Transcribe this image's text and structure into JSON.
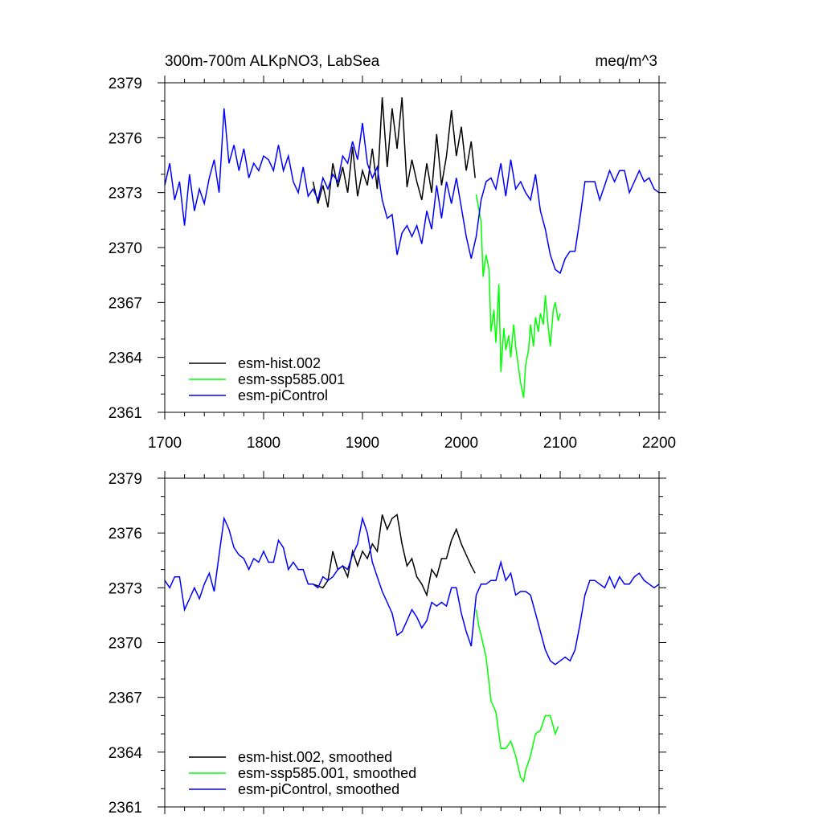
{
  "chart_data": [
    {
      "type": "line",
      "title": "300m-700m ALKpNO3, LabSea",
      "units": "meq/m^3",
      "xlim": [
        1700,
        2200
      ],
      "ylim": [
        2361,
        2379
      ],
      "xticks": [
        "1700",
        "1800",
        "1900",
        "2000",
        "2100",
        "2200"
      ],
      "yticks": [
        "2361",
        "2364",
        "2367",
        "2370",
        "2373",
        "2376",
        "2379"
      ],
      "legend_position": "bottom-left",
      "series": [
        {
          "name": "esm-hist.002",
          "color": "#000000",
          "x": [
            1850,
            1855,
            1860,
            1865,
            1870,
            1875,
            1880,
            1885,
            1890,
            1895,
            1900,
            1905,
            1910,
            1915,
            1920,
            1925,
            1930,
            1935,
            1940,
            1945,
            1950,
            1955,
            1960,
            1965,
            1970,
            1975,
            1980,
            1985,
            1990,
            1995,
            2000,
            2005,
            2010,
            2014
          ],
          "values": [
            2373.6,
            2372.4,
            2373.4,
            2372.2,
            2374.6,
            2373.3,
            2374.4,
            2373.0,
            2375.5,
            2372.8,
            2374.2,
            2373.4,
            2375.4,
            2373.2,
            2378.2,
            2374.4,
            2377.6,
            2375.4,
            2378.2,
            2373.3,
            2374.8,
            2373.6,
            2372.6,
            2374.6,
            2373.0,
            2376.2,
            2373.4,
            2375.0,
            2377.5,
            2375.0,
            2376.6,
            2374.2,
            2375.8,
            2373.8
          ]
        },
        {
          "name": "esm-ssp585.001",
          "color": "#00ff00",
          "x": [
            2015,
            2020,
            2022,
            2025,
            2028,
            2030,
            2033,
            2035,
            2038,
            2040,
            2043,
            2045,
            2048,
            2050,
            2053,
            2055,
            2058,
            2060,
            2063,
            2065,
            2068,
            2070,
            2073,
            2075,
            2078,
            2080,
            2083,
            2085,
            2088,
            2090,
            2093,
            2095,
            2098,
            2100
          ],
          "values": [
            2372.9,
            2371.4,
            2368.4,
            2369.6,
            2368.8,
            2365.4,
            2366.6,
            2364.8,
            2368.0,
            2363.2,
            2365.6,
            2364.4,
            2365.2,
            2364.0,
            2365.8,
            2364.6,
            2363.4,
            2362.6,
            2361.8,
            2363.6,
            2364.4,
            2365.8,
            2364.6,
            2366.2,
            2365.4,
            2366.4,
            2365.8,
            2367.4,
            2365.6,
            2364.6,
            2366.6,
            2367.0,
            2366.0,
            2366.4
          ]
        },
        {
          "name": "esm-piControl",
          "color": "#0000ff",
          "x": [
            1700,
            1705,
            1710,
            1715,
            1720,
            1725,
            1730,
            1735,
            1740,
            1745,
            1750,
            1755,
            1760,
            1765,
            1770,
            1775,
            1780,
            1785,
            1790,
            1795,
            1800,
            1805,
            1810,
            1815,
            1820,
            1825,
            1830,
            1835,
            1840,
            1845,
            1850,
            1855,
            1860,
            1865,
            1870,
            1875,
            1880,
            1885,
            1890,
            1895,
            1900,
            1905,
            1910,
            1915,
            1920,
            1925,
            1930,
            1935,
            1940,
            1945,
            1950,
            1955,
            1960,
            1965,
            1970,
            1975,
            1980,
            1985,
            1990,
            1995,
            2000,
            2005,
            2010,
            2015,
            2020,
            2025,
            2030,
            2035,
            2040,
            2045,
            2050,
            2055,
            2060,
            2065,
            2070,
            2075,
            2080,
            2085,
            2090,
            2095,
            2100,
            2105,
            2110,
            2115,
            2120,
            2125,
            2130,
            2135,
            2140,
            2145,
            2150,
            2155,
            2160,
            2165,
            2170,
            2175,
            2180,
            2185,
            2190,
            2195,
            2200
          ],
          "values": [
            2373.4,
            2374.6,
            2372.6,
            2373.6,
            2371.2,
            2374.0,
            2372.0,
            2373.2,
            2372.4,
            2373.8,
            2374.8,
            2373.0,
            2377.6,
            2374.6,
            2375.6,
            2374.2,
            2375.4,
            2373.8,
            2374.6,
            2374.2,
            2375.0,
            2374.8,
            2374.2,
            2375.6,
            2374.2,
            2375.0,
            2373.6,
            2373.0,
            2374.4,
            2372.8,
            2373.2,
            2372.6,
            2373.8,
            2373.2,
            2374.0,
            2373.6,
            2375.0,
            2374.6,
            2375.8,
            2374.8,
            2376.8,
            2374.6,
            2373.8,
            2374.4,
            2372.6,
            2371.6,
            2371.8,
            2369.6,
            2370.8,
            2371.2,
            2370.6,
            2371.2,
            2370.2,
            2372.0,
            2371.0,
            2373.4,
            2371.6,
            2373.6,
            2372.4,
            2373.8,
            2372.2,
            2370.6,
            2369.4,
            2370.6,
            2372.6,
            2373.6,
            2373.8,
            2373.2,
            2374.6,
            2372.8,
            2374.8,
            2373.2,
            2373.6,
            2373.0,
            2372.6,
            2374.0,
            2372.0,
            2371.0,
            2369.6,
            2368.8,
            2368.6,
            2369.4,
            2369.8,
            2369.8,
            2371.6,
            2373.6,
            2373.6,
            2373.6,
            2372.6,
            2373.4,
            2374.2,
            2373.6,
            2374.2,
            2374.2,
            2373.0,
            2373.6,
            2374.2,
            2373.6,
            2373.8,
            2373.2,
            2373.0
          ]
        }
      ]
    },
    {
      "type": "line",
      "title": "",
      "xlim": [
        1700,
        2200
      ],
      "ylim": [
        2361,
        2379
      ],
      "yticks": [
        "2361",
        "2364",
        "2367",
        "2370",
        "2373",
        "2376",
        "2379"
      ],
      "legend_position": "bottom-left",
      "series": [
        {
          "name": "esm-hist.002, smoothed",
          "color": "#000000",
          "x": [
            1850,
            1860,
            1865,
            1870,
            1875,
            1880,
            1885,
            1890,
            1895,
            1900,
            1905,
            1910,
            1915,
            1920,
            1925,
            1930,
            1935,
            1940,
            1945,
            1950,
            1955,
            1960,
            1965,
            1970,
            1975,
            1980,
            1985,
            1990,
            1995,
            2000,
            2005,
            2010,
            2014
          ],
          "values": [
            2373.2,
            2373.0,
            2373.4,
            2375.0,
            2374.0,
            2374.2,
            2373.6,
            2375.0,
            2374.2,
            2375.0,
            2374.6,
            2375.4,
            2375.0,
            2377.0,
            2376.2,
            2376.8,
            2377.0,
            2375.4,
            2374.2,
            2374.6,
            2373.6,
            2373.2,
            2372.6,
            2374.0,
            2373.6,
            2374.6,
            2374.6,
            2375.6,
            2376.2,
            2375.4,
            2374.8,
            2374.2,
            2373.8
          ]
        },
        {
          "name": "esm-ssp585.001, smoothed",
          "color": "#00ff00",
          "x": [
            2015,
            2018,
            2020,
            2025,
            2028,
            2030,
            2035,
            2040,
            2045,
            2050,
            2055,
            2060,
            2063,
            2065,
            2070,
            2075,
            2080,
            2085,
            2090,
            2095,
            2098
          ],
          "values": [
            2371.8,
            2370.8,
            2370.4,
            2369.2,
            2367.8,
            2366.8,
            2366.2,
            2364.2,
            2364.2,
            2364.6,
            2363.8,
            2362.6,
            2362.4,
            2363.0,
            2363.8,
            2365.0,
            2365.2,
            2366.0,
            2366.0,
            2365.0,
            2365.4
          ]
        },
        {
          "name": "esm-piControl, smoothed",
          "color": "#0000ff",
          "x": [
            1700,
            1705,
            1710,
            1715,
            1720,
            1725,
            1730,
            1735,
            1740,
            1745,
            1750,
            1755,
            1760,
            1765,
            1770,
            1775,
            1780,
            1785,
            1790,
            1795,
            1800,
            1805,
            1810,
            1815,
            1820,
            1825,
            1830,
            1835,
            1840,
            1845,
            1850,
            1855,
            1860,
            1865,
            1870,
            1875,
            1880,
            1885,
            1890,
            1895,
            1900,
            1905,
            1910,
            1915,
            1920,
            1925,
            1930,
            1935,
            1940,
            1945,
            1950,
            1955,
            1960,
            1965,
            1970,
            1975,
            1980,
            1985,
            1990,
            1995,
            2000,
            2005,
            2010,
            2015,
            2020,
            2025,
            2030,
            2035,
            2040,
            2045,
            2050,
            2055,
            2060,
            2065,
            2070,
            2075,
            2080,
            2085,
            2090,
            2095,
            2100,
            2105,
            2110,
            2115,
            2120,
            2125,
            2130,
            2135,
            2140,
            2145,
            2150,
            2155,
            2160,
            2165,
            2170,
            2175,
            2180,
            2185,
            2190,
            2195,
            2200
          ],
          "values": [
            2373.4,
            2373.0,
            2373.6,
            2373.6,
            2371.8,
            2372.4,
            2373.0,
            2372.4,
            2373.2,
            2373.8,
            2372.8,
            2374.8,
            2376.8,
            2376.2,
            2375.2,
            2374.8,
            2374.6,
            2374.0,
            2374.6,
            2374.4,
            2375.0,
            2374.4,
            2374.4,
            2375.6,
            2375.2,
            2374.0,
            2374.4,
            2374.0,
            2374.0,
            2373.2,
            2373.2,
            2373.0,
            2373.6,
            2373.4,
            2373.6,
            2374.0,
            2374.2,
            2374.0,
            2374.8,
            2375.4,
            2376.8,
            2376.0,
            2374.4,
            2373.6,
            2372.8,
            2372.2,
            2371.6,
            2370.4,
            2370.6,
            2371.2,
            2371.8,
            2371.4,
            2370.8,
            2371.2,
            2372.2,
            2372.0,
            2372.2,
            2372.0,
            2373.0,
            2373.0,
            2371.6,
            2370.6,
            2369.8,
            2372.6,
            2373.2,
            2373.2,
            2373.4,
            2373.4,
            2374.4,
            2373.4,
            2373.8,
            2372.6,
            2372.8,
            2372.8,
            2372.6,
            2371.6,
            2370.6,
            2369.6,
            2369.0,
            2368.8,
            2369.0,
            2369.2,
            2369.0,
            2369.6,
            2371.0,
            2372.6,
            2373.4,
            2373.4,
            2373.2,
            2373.0,
            2373.6,
            2373.0,
            2373.6,
            2373.2,
            2373.2,
            2373.6,
            2373.8,
            2373.4,
            2373.2,
            2373.0,
            2373.2
          ]
        }
      ]
    }
  ]
}
